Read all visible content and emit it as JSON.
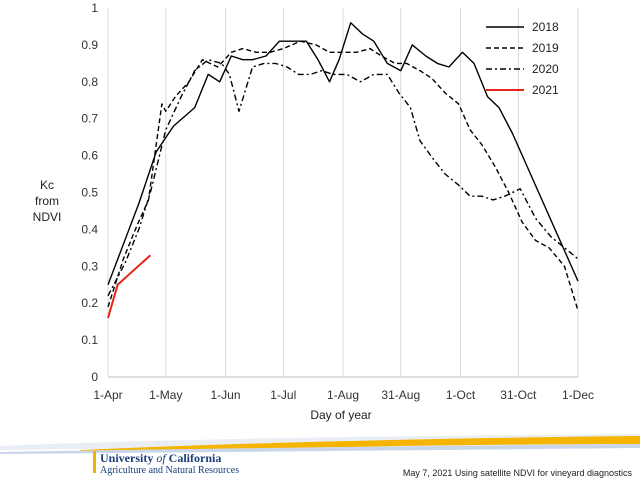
{
  "chart_data": {
    "type": "line",
    "title": "",
    "xlabel": "Day of year",
    "ylabel_lines": [
      "Kc",
      "from",
      "NDVI"
    ],
    "ylim": [
      0,
      1
    ],
    "y_ticks": [
      0,
      0.1,
      0.2,
      0.3,
      0.4,
      0.5,
      0.6,
      0.7,
      0.8,
      0.9,
      1
    ],
    "y_tick_labels": [
      "0",
      "0.1",
      "0.2",
      "0.3",
      "0.4",
      "0.5",
      "0.6",
      "0.7",
      "0.8",
      "0.9",
      "1"
    ],
    "xlim": [
      91,
      335
    ],
    "x_ticks": [
      91,
      121,
      152,
      182,
      213,
      243,
      274,
      304,
      335
    ],
    "x_tick_labels": [
      "1-Apr",
      "1-May",
      "1-Jun",
      "1-Jul",
      "1-Aug",
      "31-Aug",
      "1-Oct",
      "31-Oct",
      "1-Dec"
    ],
    "grid": "vertical",
    "legend_position": "top-right",
    "series": [
      {
        "name": "2018",
        "color": "#000000",
        "dash": "solid",
        "x": [
          91,
          107,
          116,
          125,
          136,
          143,
          149,
          155,
          161,
          166,
          173,
          180,
          187,
          194,
          200,
          206,
          211,
          217,
          223,
          229,
          236,
          243,
          249,
          256,
          262,
          268,
          275,
          281,
          288,
          294,
          301,
          335
        ],
        "y": [
          0.25,
          0.47,
          0.61,
          0.68,
          0.73,
          0.82,
          0.8,
          0.87,
          0.86,
          0.86,
          0.87,
          0.91,
          0.91,
          0.91,
          0.86,
          0.8,
          0.86,
          0.96,
          0.93,
          0.91,
          0.85,
          0.83,
          0.9,
          0.87,
          0.85,
          0.84,
          0.88,
          0.85,
          0.76,
          0.73,
          0.66,
          0.26
        ]
      },
      {
        "name": "2019",
        "color": "#000000",
        "dash": "dashed",
        "x": [
          91,
          99,
          106,
          112,
          119,
          121,
          126,
          133,
          140,
          148,
          155,
          161,
          168,
          175,
          182,
          191,
          199,
          206,
          213,
          220,
          227,
          233,
          240,
          246,
          253,
          259,
          266,
          273,
          279,
          285,
          292,
          299,
          306,
          313,
          320,
          328,
          335
        ],
        "y": [
          0.19,
          0.32,
          0.41,
          0.48,
          0.74,
          0.72,
          0.76,
          0.8,
          0.86,
          0.84,
          0.88,
          0.89,
          0.88,
          0.88,
          0.89,
          0.91,
          0.9,
          0.88,
          0.88,
          0.88,
          0.89,
          0.87,
          0.85,
          0.85,
          0.83,
          0.81,
          0.77,
          0.74,
          0.67,
          0.63,
          0.57,
          0.5,
          0.42,
          0.37,
          0.35,
          0.3,
          0.18
        ]
      },
      {
        "name": "2020",
        "color": "#000000",
        "dash": "dashdot",
        "x": [
          91,
          100,
          107,
          113,
          121,
          129,
          136,
          143,
          150,
          154,
          159,
          166,
          172,
          178,
          184,
          190,
          196,
          202,
          208,
          215,
          222,
          229,
          236,
          242,
          248,
          253,
          260,
          266,
          273,
          279,
          285,
          291,
          297,
          305,
          313,
          321,
          328,
          335
        ],
        "y": [
          0.22,
          0.31,
          0.4,
          0.5,
          0.67,
          0.76,
          0.83,
          0.86,
          0.85,
          0.82,
          0.72,
          0.84,
          0.85,
          0.85,
          0.84,
          0.82,
          0.82,
          0.83,
          0.82,
          0.82,
          0.8,
          0.82,
          0.82,
          0.77,
          0.73,
          0.64,
          0.59,
          0.55,
          0.52,
          0.49,
          0.49,
          0.48,
          0.49,
          0.51,
          0.43,
          0.38,
          0.35,
          0.32
        ]
      },
      {
        "name": "2021",
        "color": "#e8231a",
        "dash": "solid",
        "x": [
          91,
          96,
          113
        ],
        "y": [
          0.16,
          0.25,
          0.33
        ]
      }
    ]
  },
  "footer": {
    "logo_name": "University",
    "logo_of": "of",
    "logo_state": "California",
    "logo_sub": "Agriculture and Natural Resources",
    "note": "May 7, 2021 Using satellite NDVI for vineyard diagnostics"
  }
}
